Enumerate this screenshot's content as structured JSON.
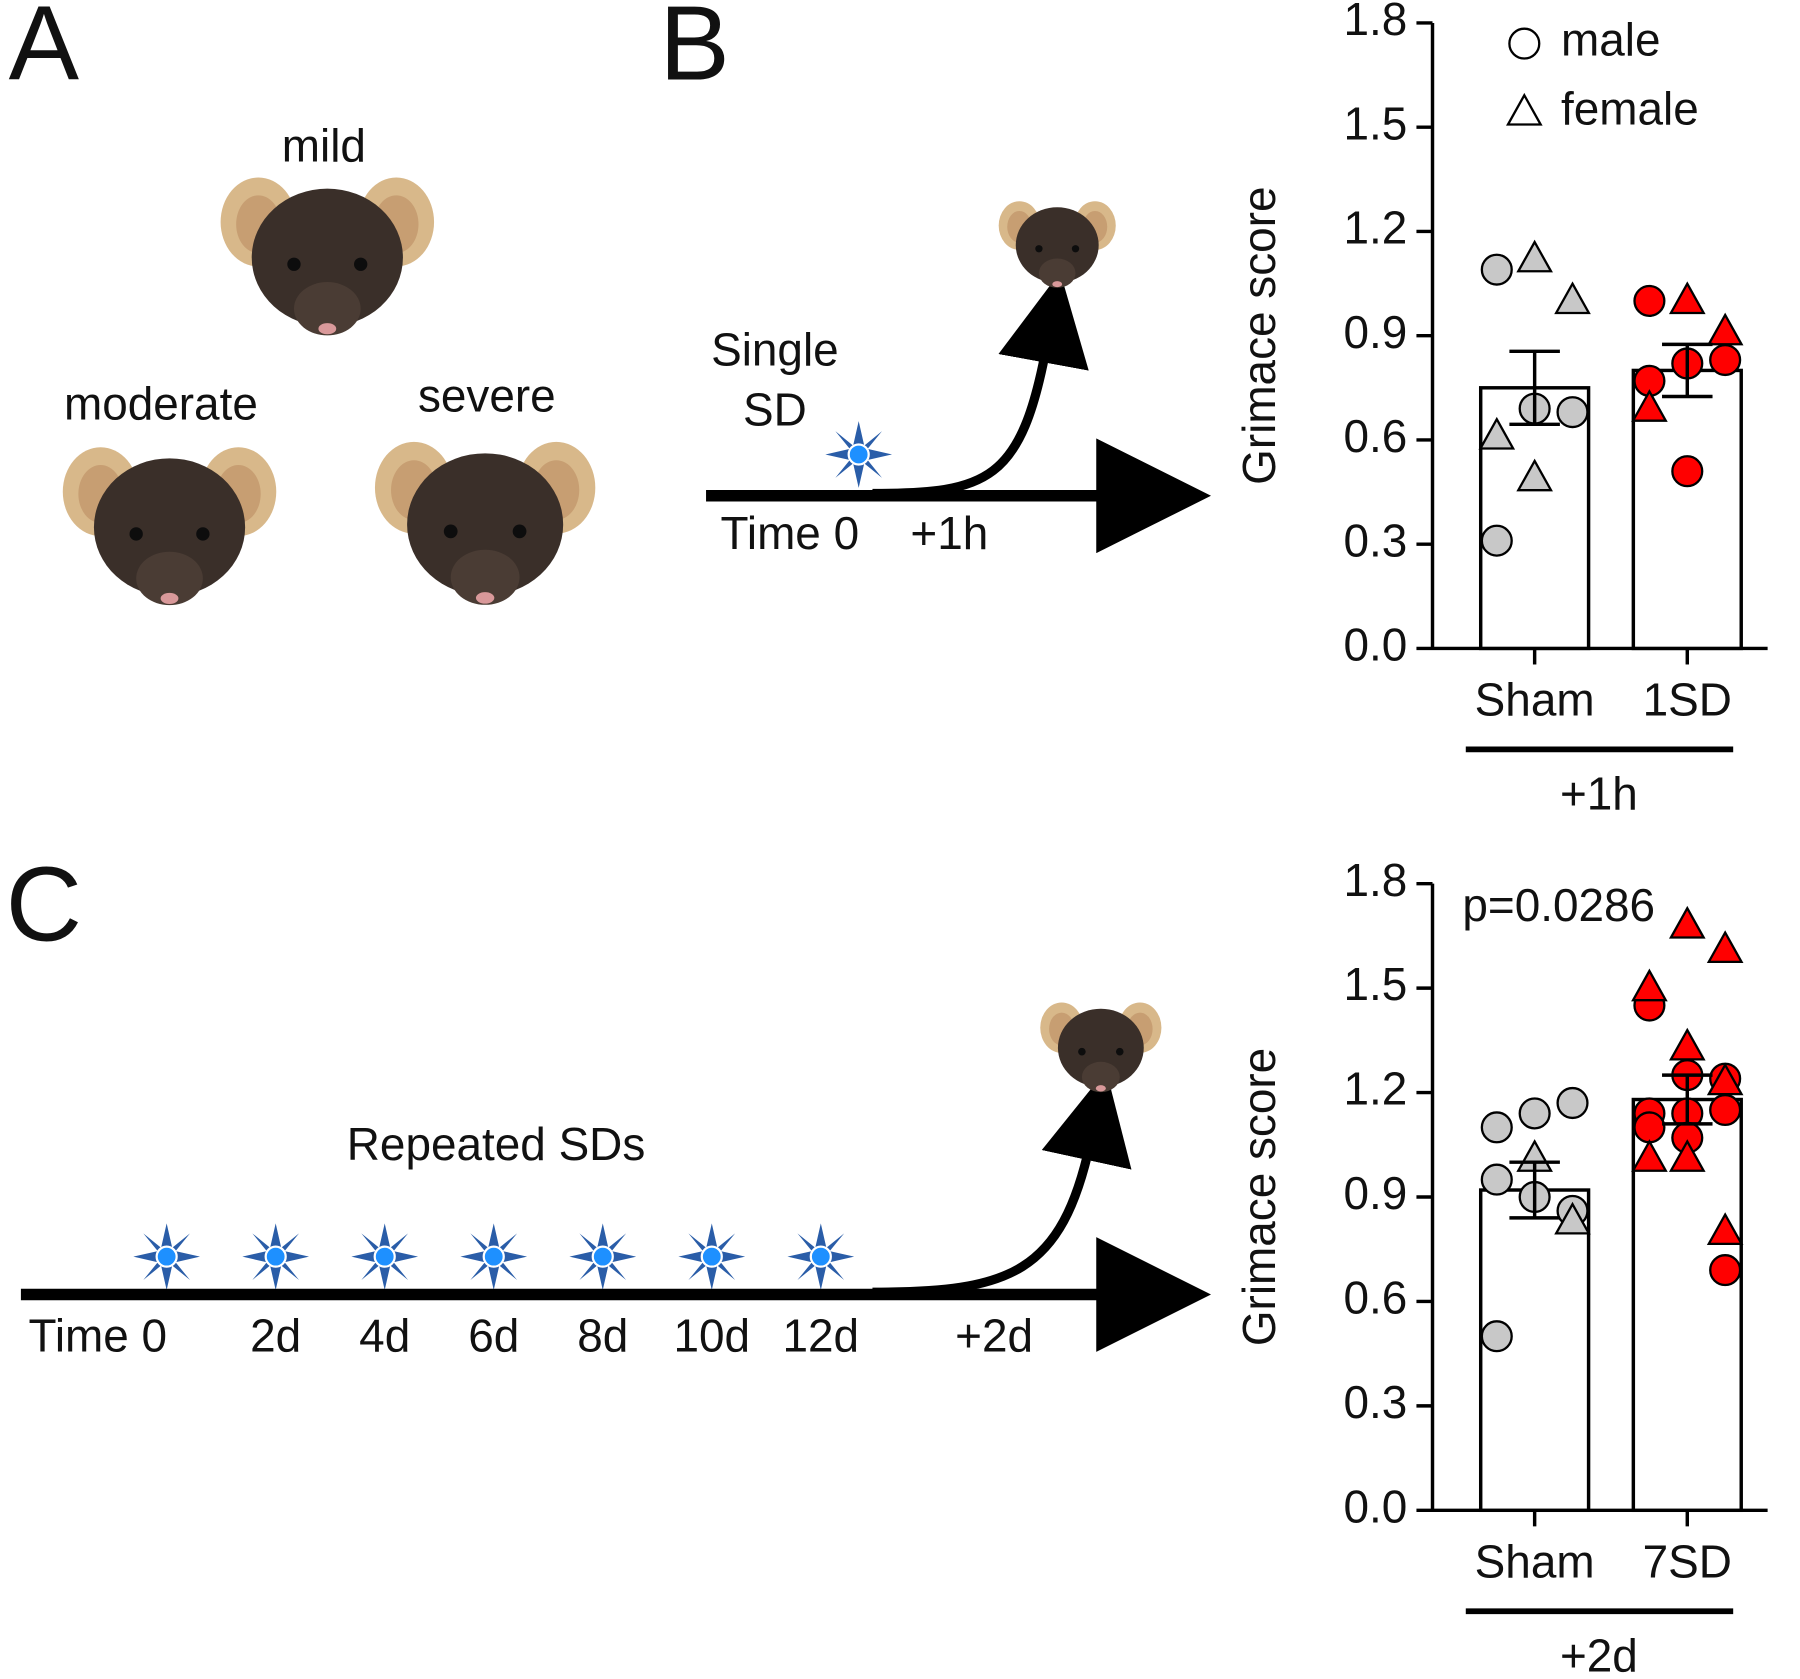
{
  "panels": {
    "A": {
      "label": "A",
      "levels": [
        "mild",
        "moderate",
        "severe"
      ]
    },
    "B": {
      "label": "B",
      "event": [
        "Single",
        "SD"
      ],
      "times": [
        "Time 0",
        "+1h"
      ]
    },
    "C": {
      "label": "C",
      "event": "Repeated SDs",
      "times": [
        "Time 0",
        "2d",
        "4d",
        "6d",
        "8d",
        "10d",
        "12d",
        "+2d"
      ]
    }
  },
  "chart_data": [
    {
      "type": "bar",
      "ylabel": "Grimace score",
      "categories": [
        "Sham",
        "1SD"
      ],
      "group_label": "+1h",
      "values": [
        0.75,
        0.8
      ],
      "errors": [
        0.105,
        0.075
      ],
      "colors": [
        "#c8c8c8",
        "#ff0000"
      ],
      "legend": [
        "male",
        "female"
      ],
      "points": [
        {
          "male": [
            1.09,
            0.69,
            0.68,
            0.31
          ],
          "female": [
            1.12,
            1.0,
            0.61,
            0.49
          ]
        },
        {
          "male": [
            1.0,
            0.82,
            0.83,
            0.77,
            0.51
          ],
          "female": [
            1.0,
            0.91,
            0.69
          ]
        }
      ],
      "ylim": [
        0,
        1.8
      ],
      "yticks": [
        {
          "value": 0,
          "label": "0.0"
        },
        0.3,
        0.6,
        0.9,
        1.2,
        1.5,
        1.8
      ]
    },
    {
      "type": "bar",
      "ylabel": "Grimace score",
      "categories": [
        "Sham",
        "7SD"
      ],
      "group_label": "+2d",
      "values": [
        0.92,
        1.18
      ],
      "errors": [
        0.08,
        0.07
      ],
      "colors": [
        "#c8c8c8",
        "#ff0000"
      ],
      "annotation": "p=0.0286",
      "points": [
        {
          "male": [
            1.1,
            1.14,
            1.17,
            0.95,
            0.9,
            0.86,
            0.5
          ],
          "female": [
            1.01,
            0.83
          ]
        },
        {
          "male": [
            1.45,
            1.25,
            1.24,
            1.14,
            1.14,
            1.15,
            1.1,
            1.07,
            0.69
          ],
          "female": [
            1.68,
            1.61,
            1.5,
            1.33,
            1.23,
            1.01,
            1.01,
            0.8
          ]
        }
      ],
      "ylim": [
        0,
        1.8
      ],
      "yticks": [
        {
          "value": 0,
          "label": "0.0"
        },
        0.3,
        0.6,
        0.9,
        1.2,
        1.5,
        1.8
      ]
    }
  ]
}
